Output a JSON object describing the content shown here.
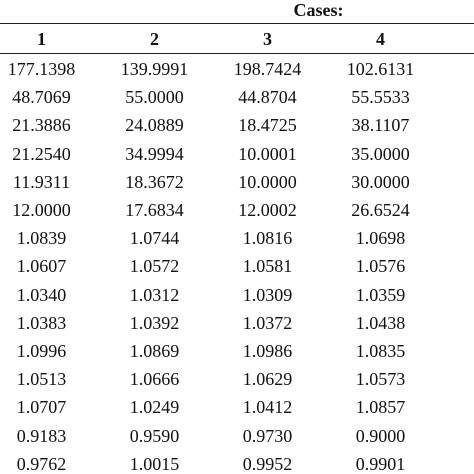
{
  "table": {
    "group_header": "Cases:",
    "columns": [
      "1",
      "2",
      "3",
      "4"
    ],
    "rows": [
      [
        "177.1398",
        "139.9991",
        "198.7424",
        "102.6131"
      ],
      [
        "48.7069",
        "55.0000",
        "44.8704",
        "55.5533"
      ],
      [
        "21.3886",
        "24.0889",
        "18.4725",
        "38.1107"
      ],
      [
        "21.2540",
        "34.9994",
        "10.0001",
        "35.0000"
      ],
      [
        "11.9311",
        "18.3672",
        "10.0000",
        "30.0000"
      ],
      [
        "12.0000",
        "17.6834",
        "12.0002",
        "26.6524"
      ],
      [
        "1.0839",
        "1.0744",
        "1.0816",
        "1.0698"
      ],
      [
        "1.0607",
        "1.0572",
        "1.0581",
        "1.0576"
      ],
      [
        "1.0340",
        "1.0312",
        "1.0309",
        "1.0359"
      ],
      [
        "1.0383",
        "1.0392",
        "1.0372",
        "1.0438"
      ],
      [
        "1.0996",
        "1.0869",
        "1.0986",
        "1.0835"
      ],
      [
        "1.0513",
        "1.0666",
        "1.0629",
        "1.0573"
      ],
      [
        "1.0707",
        "1.0249",
        "1.0412",
        "1.0857"
      ],
      [
        "0.9183",
        "0.9590",
        "0.9730",
        "0.9000"
      ],
      [
        "0.9762",
        "1.0015",
        "0.9952",
        "0.9901"
      ]
    ]
  }
}
